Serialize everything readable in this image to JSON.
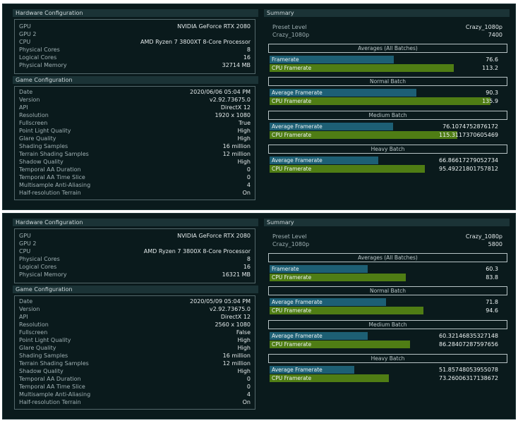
{
  "shots": [
    {
      "hardware": {
        "title": "Hardware Configuration",
        "rows": [
          {
            "k": "GPU",
            "v": "NVIDIA GeForce RTX 2080"
          },
          {
            "k": "GPU 2",
            "v": ""
          },
          {
            "k": "CPU",
            "v": "AMD Ryzen 7 3800XT 8-Core Processor"
          },
          {
            "k": "Physical Cores",
            "v": "8"
          },
          {
            "k": "Logical Cores",
            "v": "16"
          },
          {
            "k": "Physical Memory",
            "v": "32714 MB"
          }
        ]
      },
      "game": {
        "title": "Game Configuration",
        "rows": [
          {
            "k": "Date",
            "v": "2020/06/06 05:04 PM"
          },
          {
            "k": "Version",
            "v": "v2.92.73675.0"
          },
          {
            "k": "API",
            "v": "DirectX 12"
          },
          {
            "k": "Resolution",
            "v": "1920 x 1080"
          },
          {
            "k": "Fullscreen",
            "v": "True"
          },
          {
            "k": "Point Light Quality",
            "v": "High"
          },
          {
            "k": "Glare Quality",
            "v": "High"
          },
          {
            "k": "Shading Samples",
            "v": "16 million"
          },
          {
            "k": "Terrain Shading Samples",
            "v": "12 million"
          },
          {
            "k": "Shadow Quality",
            "v": "High"
          },
          {
            "k": "Temporal AA Duration",
            "v": "0"
          },
          {
            "k": "Temporal AA Time Slice",
            "v": "0"
          },
          {
            "k": "Multisample Anti-Aliasing",
            "v": "4"
          },
          {
            "k": "Half-resolution Terrain",
            "v": "On"
          }
        ]
      },
      "summary": {
        "title": "Summary",
        "preset_label": "Preset Level",
        "preset_value": "Crazy_1080p",
        "score_label": "Crazy_1080p",
        "score_value": "7400",
        "groups": [
          {
            "title": "Averages (All Batches)",
            "bars": [
              {
                "label": "Framerate",
                "value": "76.6",
                "num": 76.6,
                "color": "blue"
              },
              {
                "label": "CPU Framerate",
                "value": "113.2",
                "num": 113.2,
                "color": "green"
              }
            ]
          },
          {
            "title": "Normal Batch",
            "bars": [
              {
                "label": "Average Framerate",
                "value": "90.3",
                "num": 90.3,
                "color": "blue"
              },
              {
                "label": "CPU Framerate",
                "value": "135.9",
                "num": 135.9,
                "color": "green"
              }
            ]
          },
          {
            "title": "Medium Batch",
            "bars": [
              {
                "label": "Average Framerate",
                "value": "76.1074752876172",
                "num": 76.1,
                "color": "blue"
              },
              {
                "label": "CPU Framerate",
                "value": "115.3117370605469",
                "num": 115.3,
                "color": "green"
              }
            ]
          },
          {
            "title": "Heavy Batch",
            "bars": [
              {
                "label": "Average Framerate",
                "value": "66.86617279052734",
                "num": 66.9,
                "color": "blue"
              },
              {
                "label": "CPU Framerate",
                "value": "95.49221801757812",
                "num": 95.5,
                "color": "green"
              }
            ]
          }
        ]
      }
    },
    {
      "hardware": {
        "title": "Hardware Configuration",
        "rows": [
          {
            "k": "GPU",
            "v": "NVIDIA GeForce RTX 2080"
          },
          {
            "k": "GPU 2",
            "v": ""
          },
          {
            "k": "CPU",
            "v": "AMD Ryzen 7 3800X 8-Core Processor"
          },
          {
            "k": "Physical Cores",
            "v": "8"
          },
          {
            "k": "Logical Cores",
            "v": "16"
          },
          {
            "k": "Physical Memory",
            "v": "16321 MB"
          }
        ]
      },
      "game": {
        "title": "Game Configuration",
        "rows": [
          {
            "k": "Date",
            "v": "2020/05/09 05:04 PM"
          },
          {
            "k": "Version",
            "v": "v2.92.73675.0"
          },
          {
            "k": "API",
            "v": "DirectX 12"
          },
          {
            "k": "Resolution",
            "v": "2560 x 1080"
          },
          {
            "k": "Fullscreen",
            "v": "False"
          },
          {
            "k": "Point Light Quality",
            "v": "High"
          },
          {
            "k": "Glare Quality",
            "v": "High"
          },
          {
            "k": "Shading Samples",
            "v": "16 million"
          },
          {
            "k": "Terrain Shading Samples",
            "v": "12 million"
          },
          {
            "k": "Shadow Quality",
            "v": "High"
          },
          {
            "k": "Temporal AA Duration",
            "v": "0"
          },
          {
            "k": "Temporal AA Time Slice",
            "v": "0"
          },
          {
            "k": "Multisample Anti-Aliasing",
            "v": "4"
          },
          {
            "k": "Half-resolution Terrain",
            "v": "On"
          }
        ]
      },
      "summary": {
        "title": "Summary",
        "preset_label": "Preset Level",
        "preset_value": "Crazy_1080p",
        "score_label": "Crazy_1080p",
        "score_value": "5800",
        "groups": [
          {
            "title": "Averages (All Batches)",
            "bars": [
              {
                "label": "Framerate",
                "value": "60.3",
                "num": 60.3,
                "color": "blue"
              },
              {
                "label": "CPU Framerate",
                "value": "83.8",
                "num": 83.8,
                "color": "green"
              }
            ]
          },
          {
            "title": "Normal Batch",
            "bars": [
              {
                "label": "Average Framerate",
                "value": "71.8",
                "num": 71.8,
                "color": "blue"
              },
              {
                "label": "CPU Framerate",
                "value": "94.6",
                "num": 94.6,
                "color": "green"
              }
            ]
          },
          {
            "title": "Medium Batch",
            "bars": [
              {
                "label": "Average Framerate",
                "value": "60.32146835327148",
                "num": 60.3,
                "color": "blue"
              },
              {
                "label": "CPU Framerate",
                "value": "86.28407287597656",
                "num": 86.3,
                "color": "green"
              }
            ]
          },
          {
            "title": "Heavy Batch",
            "bars": [
              {
                "label": "Average Framerate",
                "value": "51.85748053955078",
                "num": 51.9,
                "color": "blue"
              },
              {
                "label": "CPU Framerate",
                "value": "73.26006317138672",
                "num": 73.3,
                "color": "green"
              }
            ]
          }
        ]
      }
    }
  ]
}
